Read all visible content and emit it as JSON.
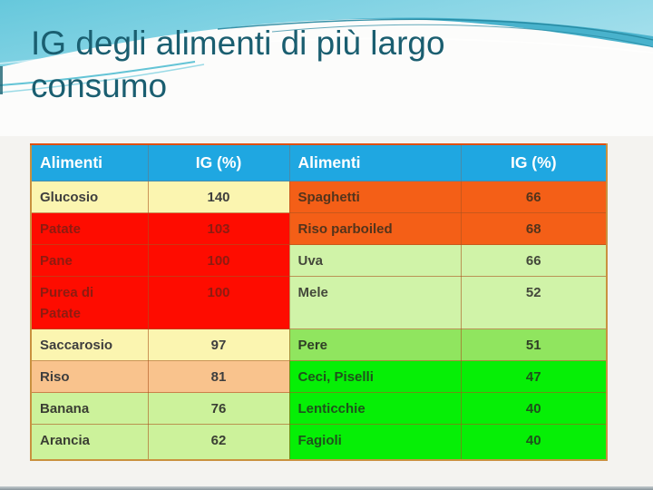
{
  "slide": {
    "title_line1": "IG degli alimenti di più largo",
    "title_line2": "consumo",
    "title_color": "#1a5e70"
  },
  "palette": {
    "header": {
      "bg": "#1fa7e1",
      "fg": "#ffffff"
    },
    "paleYellow": {
      "bg": "#fbf5b0",
      "fg": "#3e3e3e"
    },
    "red": {
      "bg": "#fe0c00",
      "fg": "#8e1b10"
    },
    "peach": {
      "bg": "#f9c38d",
      "fg": "#3e3e3e"
    },
    "yellowGreen": {
      "bg": "#ccf29b",
      "fg": "#3a3e33"
    },
    "orange": {
      "bg": "#f45f17",
      "fg": "#53341c"
    },
    "lightGreen": {
      "bg": "#d0f3a8",
      "fg": "#44483b"
    },
    "mediumGreen": {
      "bg": "#90e55f",
      "fg": "#2f3e26"
    },
    "brightGreen": {
      "bg": "#06ef06",
      "fg": "#1f511c"
    }
  },
  "table": {
    "headers": [
      {
        "name": "header-alimenti-left",
        "label": "Alimenti"
      },
      {
        "name": "header-ig-left",
        "label": "IG (%)"
      },
      {
        "name": "header-alimenti-right",
        "label": "Alimenti"
      },
      {
        "name": "header-ig-right",
        "label": "IG (%)"
      }
    ],
    "rows": [
      {
        "tall": false,
        "cells": [
          {
            "text": "Glucosio",
            "palette": "paleYellow"
          },
          {
            "text": "140",
            "palette": "paleYellow"
          },
          {
            "text": "Spaghetti",
            "palette": "orange"
          },
          {
            "text": "66",
            "palette": "orange"
          }
        ]
      },
      {
        "tall": false,
        "cells": [
          {
            "text": "Patate",
            "palette": "red"
          },
          {
            "text": "103",
            "palette": "red"
          },
          {
            "text": "Riso parboiled",
            "palette": "orange"
          },
          {
            "text": "68",
            "palette": "orange"
          }
        ]
      },
      {
        "tall": false,
        "cells": [
          {
            "text": "Pane",
            "palette": "red"
          },
          {
            "text": "100",
            "palette": "red"
          },
          {
            "text": "Uva",
            "palette": "lightGreen"
          },
          {
            "text": "66",
            "palette": "lightGreen"
          }
        ]
      },
      {
        "tall": true,
        "cells": [
          {
            "text": "Purea di Patate",
            "palette": "red"
          },
          {
            "text": "100",
            "palette": "red"
          },
          {
            "text": "Mele",
            "palette": "lightGreen"
          },
          {
            "text": "52",
            "palette": "lightGreen"
          }
        ]
      },
      {
        "tall": false,
        "cells": [
          {
            "text": "Saccarosio",
            "palette": "paleYellow"
          },
          {
            "text": "97",
            "palette": "paleYellow"
          },
          {
            "text": "Pere",
            "palette": "mediumGreen"
          },
          {
            "text": "51",
            "palette": "mediumGreen"
          }
        ]
      },
      {
        "tall": false,
        "cells": [
          {
            "text": "Riso",
            "palette": "peach"
          },
          {
            "text": "81",
            "palette": "peach"
          },
          {
            "text": "Ceci, Piselli",
            "palette": "brightGreen"
          },
          {
            "text": "47",
            "palette": "brightGreen"
          }
        ]
      },
      {
        "tall": false,
        "cells": [
          {
            "text": "Banana",
            "palette": "yellowGreen"
          },
          {
            "text": "76",
            "palette": "yellowGreen"
          },
          {
            "text": "Lenticchie",
            "palette": "brightGreen"
          },
          {
            "text": "40",
            "palette": "brightGreen"
          }
        ]
      },
      {
        "tall": false,
        "cells": [
          {
            "text": "Arancia",
            "palette": "yellowGreen"
          },
          {
            "text": "62",
            "palette": "yellowGreen"
          },
          {
            "text": "Fagioli",
            "palette": "brightGreen"
          },
          {
            "text": "40",
            "palette": "brightGreen"
          }
        ]
      }
    ]
  }
}
